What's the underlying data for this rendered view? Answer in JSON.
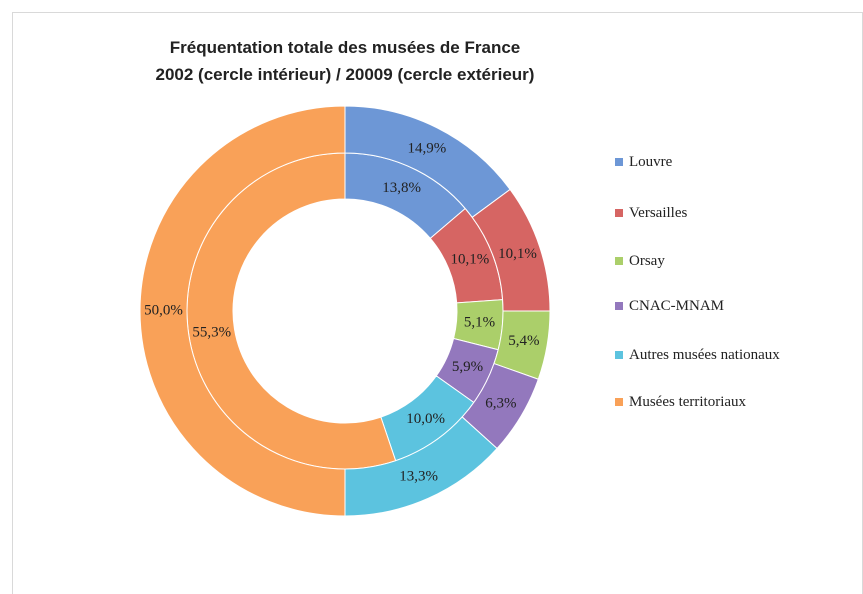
{
  "chart_data": {
    "type": "donut",
    "title": "Fréquentation totale des musées de France",
    "subtitle": "2002 (cercle intérieur) / 20009 (cercle extérieur)",
    "categories": [
      "Louvre",
      "Versailles",
      "Orsay",
      "CNAC-MNAM",
      "Autres musées nationaux",
      "Musées territoriaux"
    ],
    "colors": [
      "#6d97d6",
      "#d66563",
      "#abcf6a",
      "#9378bd",
      "#5cc3df",
      "#f9a158"
    ],
    "series": [
      {
        "values": [
          13.8,
          10.1,
          5.1,
          5.9,
          10.0,
          55.3
        ],
        "value_labels": [
          "13,8%",
          "10,1%",
          "5,1%",
          "5,9%",
          "10,0%",
          "55,3%"
        ]
      },
      {
        "values": [
          14.9,
          10.1,
          5.4,
          6.3,
          13.3,
          50.0
        ],
        "value_labels": [
          "14,9%",
          "10,1%",
          "5,4%",
          "6,3%",
          "13,3%",
          "50,0%"
        ]
      }
    ],
    "legend": "right"
  }
}
